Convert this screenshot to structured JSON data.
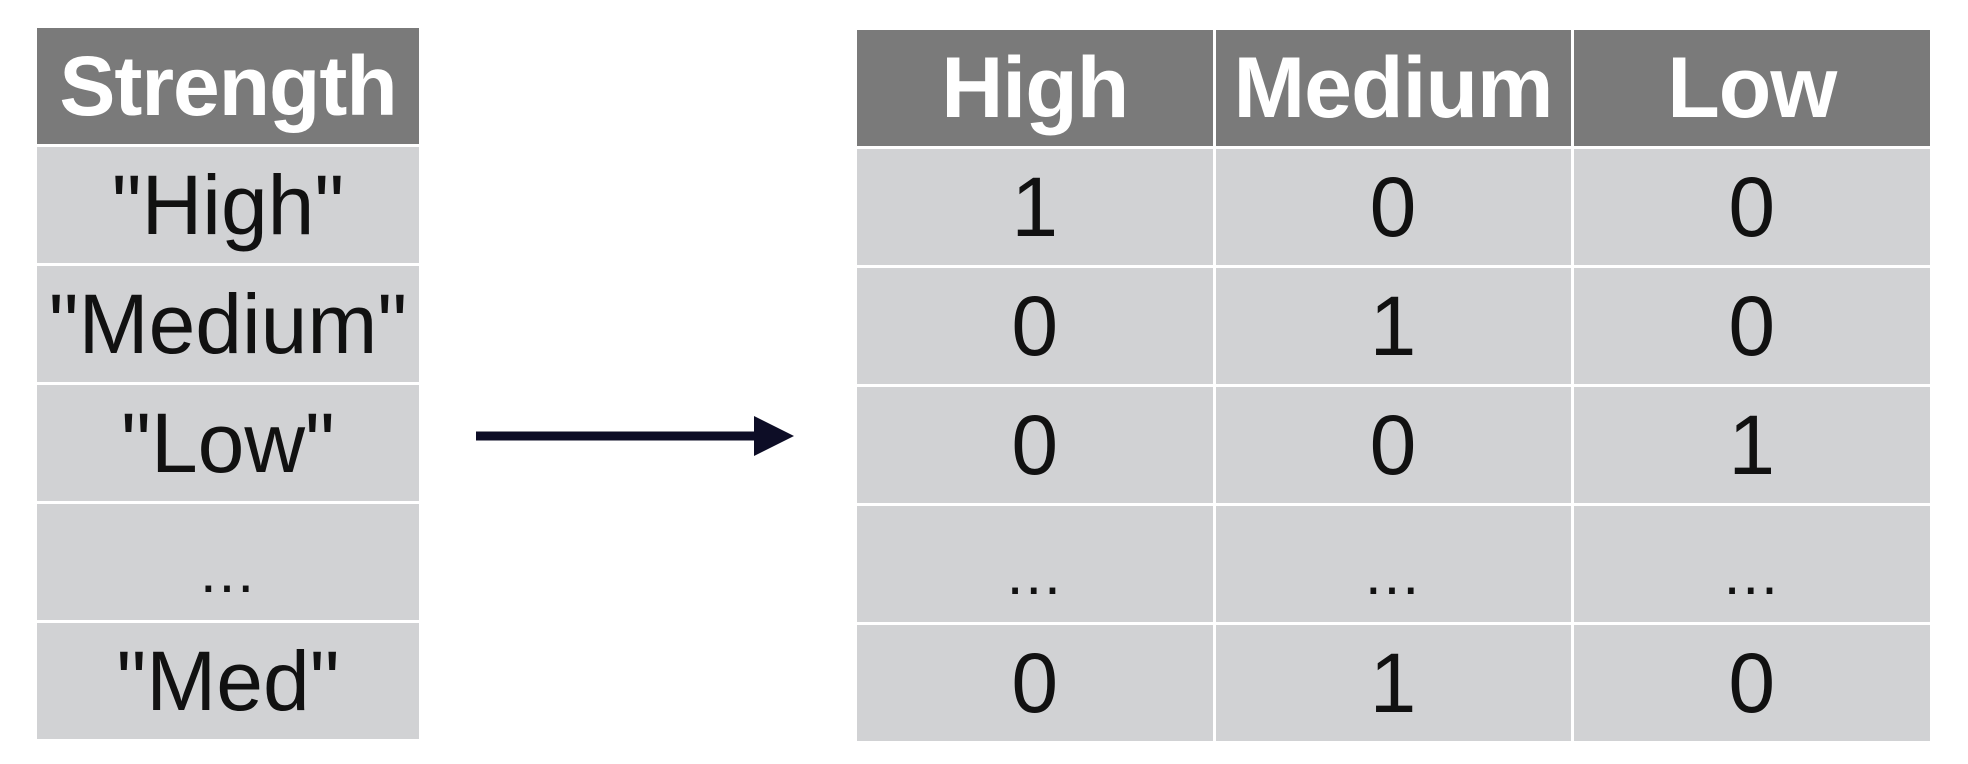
{
  "source_table": {
    "header": "Strength",
    "rows": [
      "\"High\"",
      "\"Medium\"",
      "\"Low\"",
      "...",
      "\"Med\""
    ]
  },
  "arrow": {
    "color": "#0d0d26"
  },
  "encoded_table": {
    "headers": [
      "High",
      "Medium",
      "Low"
    ],
    "rows": [
      [
        "1",
        "0",
        "0"
      ],
      [
        "0",
        "1",
        "0"
      ],
      [
        "0",
        "0",
        "1"
      ],
      [
        "...",
        "...",
        "..."
      ],
      [
        "0",
        "1",
        "0"
      ]
    ]
  },
  "colors": {
    "header_bg": "#7a7a7a",
    "cell_bg": "#d1d2d4",
    "header_text": "#ffffff",
    "cell_text": "#111111"
  }
}
